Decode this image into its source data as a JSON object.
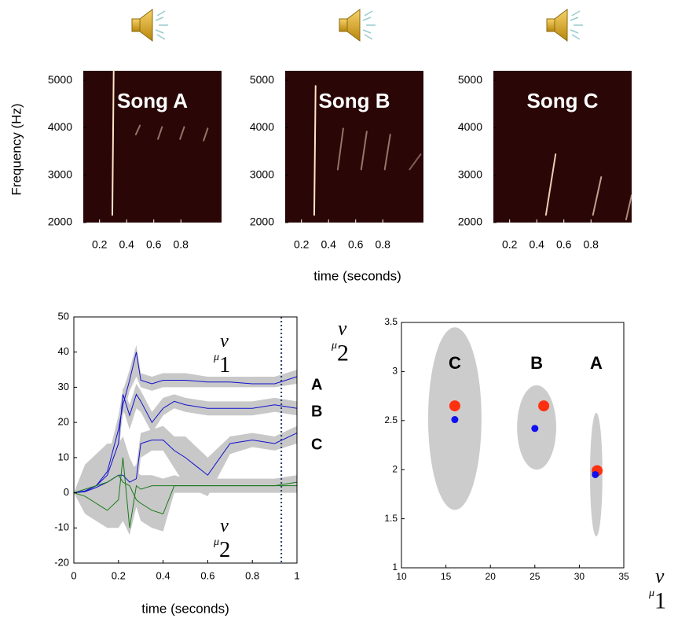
{
  "chart_data": [
    {
      "type": "spectrogram",
      "title": "Song A",
      "y_label": "Frequency (Hz)",
      "xlim": [
        0.08,
        1.1
      ],
      "ylim": [
        2000,
        5200
      ],
      "xticks": [
        0.2,
        0.4,
        0.6,
        0.8
      ],
      "yticks": [
        2000,
        3000,
        4000,
        5000
      ]
    },
    {
      "type": "spectrogram",
      "title": "Song B",
      "x_label": "time (seconds)",
      "xlim": [
        0.08,
        1.1
      ],
      "ylim": [
        2000,
        5200
      ],
      "xticks": [
        0.2,
        0.4,
        0.6,
        0.8
      ],
      "yticks": [
        2000,
        3000,
        4000,
        5000
      ]
    },
    {
      "type": "spectrogram",
      "title": "Song C",
      "xlim": [
        0.08,
        1.1
      ],
      "ylim": [
        2000,
        5200
      ],
      "xticks": [
        0.2,
        0.4,
        0.6,
        0.8
      ],
      "yticks": [
        2000,
        3000,
        4000,
        5000
      ]
    },
    {
      "type": "line",
      "x_label": "time (seconds)",
      "xlim": [
        0,
        1
      ],
      "ylim": [
        -20,
        50
      ],
      "xticks": [
        0,
        0.2,
        0.4,
        0.6,
        0.8,
        1
      ],
      "yticks": [
        -20,
        -10,
        0,
        10,
        20,
        30,
        40,
        50
      ],
      "vline": 0.93,
      "annotations": [
        {
          "symbol": "μ",
          "sub": "1",
          "sup": "v"
        },
        {
          "symbol": "μ",
          "sub": "2",
          "sup": "v"
        }
      ],
      "x": [
        0,
        0.05,
        0.1,
        0.15,
        0.2,
        0.22,
        0.25,
        0.28,
        0.3,
        0.35,
        0.4,
        0.45,
        0.5,
        0.6,
        0.7,
        0.8,
        0.9,
        1
      ],
      "series": [
        {
          "name": "A",
          "color": "#1010d0",
          "values": [
            0,
            0.5,
            2,
            6,
            18,
            25,
            32,
            40,
            32,
            31,
            32,
            32,
            32,
            31.5,
            31.5,
            31,
            31,
            33
          ],
          "band": {
            "lower": [
              0,
              0,
              1,
              4,
              14,
              22,
              29,
              33,
              30,
              29,
              30,
              30,
              30,
              30,
              30,
              30,
              30,
              31
            ],
            "upper": [
              0,
              1,
              3,
              9,
              22,
              29,
              35,
              42,
              34,
              33,
              34,
              34,
              34,
              33,
              33,
              33,
              33,
              35
            ]
          }
        },
        {
          "name": "B",
          "color": "#1010d0",
          "values": [
            0,
            0.5,
            2,
            5,
            14,
            28,
            22,
            28,
            26,
            20,
            24,
            26,
            25,
            24,
            24,
            24,
            25,
            24
          ],
          "band": {
            "lower": [
              0,
              0,
              1,
              3,
              10,
              24,
              18,
              24,
              23,
              17,
              22,
              24,
              23,
              22,
              22,
              22,
              23,
              22
            ],
            "upper": [
              0,
              1,
              3,
              7,
              18,
              30,
              25,
              31,
              29,
              23,
              27,
              28,
              27,
              26,
              26,
              26,
              27,
              26
            ]
          }
        },
        {
          "name": "C",
          "color": "#1010d0",
          "values": [
            0,
            0.3,
            1.5,
            3,
            5,
            5,
            3,
            4,
            14,
            15,
            15,
            12,
            10,
            5,
            14,
            15,
            14,
            17
          ],
          "band": {
            "lower": [
              0,
              0,
              0,
              1,
              2,
              2,
              0,
              0,
              10,
              12,
              12,
              7,
              2,
              -1,
              11,
              13,
              12,
              14
            ],
            "upper": [
              0,
              1,
              3,
              5,
              8,
              8,
              6,
              8,
              17,
              18,
              19,
              16,
              16,
              10,
              16,
              17,
              16,
              19
            ]
          }
        },
        {
          "color": "#1a7a1a",
          "values": [
            0,
            -1,
            -3,
            -5,
            -2,
            10,
            -10,
            2,
            1,
            2,
            2,
            2,
            2,
            2,
            2,
            2,
            2,
            3
          ],
          "band": {
            "lower": [
              0,
              -6,
              -8,
              -10,
              -10,
              -8,
              -12,
              -4,
              -8,
              -10,
              -11,
              0,
              0,
              0,
              0,
              0,
              0,
              0
            ],
            "upper": [
              0,
              8,
              11,
              14,
              14,
              16,
              10,
              6,
              5,
              5,
              4,
              5,
              4,
              4,
              4,
              4,
              4,
              5
            ]
          }
        },
        {
          "color": "#1a7a1a",
          "values": [
            0,
            1,
            2,
            3,
            5,
            3,
            2,
            -2,
            -3,
            -5,
            -6,
            2,
            2,
            2,
            2,
            2,
            2,
            2
          ]
        }
      ]
    },
    {
      "type": "scatter",
      "xlim": [
        10,
        35
      ],
      "ylim": [
        1,
        3.5
      ],
      "xticks": [
        10,
        15,
        20,
        25,
        30,
        35
      ],
      "yticks": [
        1,
        1.5,
        2,
        2.5,
        3,
        3.5
      ],
      "x_label": {
        "symbol": "μ",
        "sub": "1",
        "sup": "v"
      },
      "y_label": {
        "symbol": "μ",
        "sub": "2",
        "sup": "v"
      },
      "ellipses": {
        "color": "#cccccc",
        "labels": [
          "C",
          "B",
          "A"
        ],
        "cx": [
          16,
          25.2,
          31.9
        ],
        "cy": [
          2.52,
          2.43,
          1.95
        ],
        "rx": [
          3,
          2.2,
          0.7
        ],
        "ry": [
          0.93,
          0.43,
          0.63
        ]
      },
      "series": [
        {
          "color": "#ff3010",
          "x": [
            16,
            26,
            32
          ],
          "values": [
            2.65,
            2.65,
            1.99
          ]
        },
        {
          "color": "#1010f0",
          "x": [
            16,
            25,
            31.8
          ],
          "values": [
            2.51,
            2.42,
            1.95
          ]
        }
      ]
    }
  ]
}
